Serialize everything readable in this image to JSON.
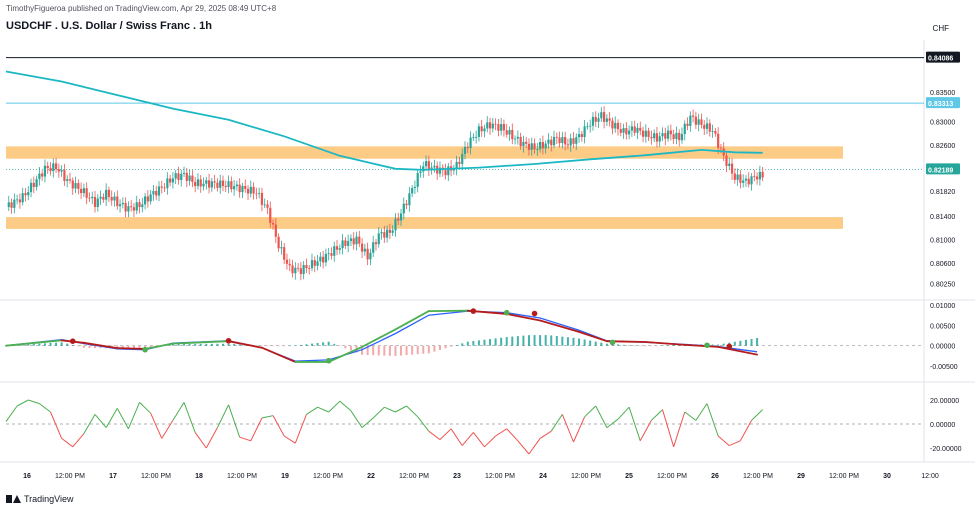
{
  "header": {
    "published": "TimothyFigueroa published on TradingView.com, Apr 29, 2025 08:49 UTC+8",
    "symbol": "USDCHF . U.S. Dollar / Swiss Franc . 1h",
    "currency": "CHF",
    "brand": "TradingView"
  },
  "colors": {
    "up": "#26a69a",
    "down": "#ef5350",
    "ma": "#1bb8c4",
    "zone": "#fcc77a",
    "macd_fast": "#2962ff",
    "macd_signal_up": "#4caf50",
    "macd_signal_down": "#b71c1c",
    "osc_up": "#4caf50",
    "osc_down": "#ef5350"
  },
  "chart_data": {
    "type": "candlestick",
    "symbol": "USDCHF",
    "timeframe": "1h",
    "price_ticks": [
      0.835,
      0.83,
      0.826,
      0.822,
      0.8182,
      0.814,
      0.81,
      0.806,
      0.8025
    ],
    "price_tick_labels": [
      "0.83500",
      "0.83000",
      "0.82600",
      "0.82189",
      "0.81820",
      "0.81400",
      "0.81000",
      "0.80600",
      "0.80250"
    ],
    "price_labels_shown": [
      "0.83500",
      "0.83000",
      "0.82600",
      "0.81820",
      "0.81400",
      "0.81000",
      "0.80600",
      "0.80250"
    ],
    "horizontal_lines": [
      {
        "value": 0.84086,
        "label": "0.84086",
        "color": "#131722"
      },
      {
        "value": 0.83313,
        "label": "0.83313",
        "color": "#5ec8e6"
      }
    ],
    "last_price": {
      "value": 0.82189,
      "label": "0.82189"
    },
    "zones": [
      {
        "from": 0.8237,
        "to": 0.8258,
        "color": "#fcc77a"
      },
      {
        "from": 0.8118,
        "to": 0.8138,
        "color": "#fcc77a"
      }
    ],
    "x_tick_labels": [
      "16",
      "12:00 PM",
      "17",
      "12:00 PM",
      "18",
      "12:00 PM",
      "19",
      "12:00 PM",
      "22",
      "12:00 PM",
      "23",
      "12:00 PM",
      "24",
      "12:00 PM",
      "25",
      "12:00 PM",
      "26",
      "12:00 PM",
      "29",
      "12:00 PM",
      "30",
      "12:00"
    ],
    "close_path": [
      [
        0,
        0.8155
      ],
      [
        6,
        0.8172
      ],
      [
        10,
        0.8195
      ],
      [
        14,
        0.822
      ],
      [
        18,
        0.8223
      ],
      [
        22,
        0.82
      ],
      [
        28,
        0.818
      ],
      [
        32,
        0.8162
      ],
      [
        36,
        0.8178
      ],
      [
        40,
        0.8162
      ],
      [
        44,
        0.8152
      ],
      [
        48,
        0.8158
      ],
      [
        52,
        0.8175
      ],
      [
        56,
        0.8188
      ],
      [
        60,
        0.8205
      ],
      [
        64,
        0.821
      ],
      [
        68,
        0.8195
      ],
      [
        74,
        0.8195
      ],
      [
        80,
        0.8192
      ],
      [
        86,
        0.8185
      ],
      [
        90,
        0.818
      ],
      [
        94,
        0.815
      ],
      [
        98,
        0.809
      ],
      [
        102,
        0.805
      ],
      [
        106,
        0.8048
      ],
      [
        110,
        0.8058
      ],
      [
        114,
        0.8068
      ],
      [
        118,
        0.8082
      ],
      [
        122,
        0.8095
      ],
      [
        126,
        0.81
      ],
      [
        130,
        0.807
      ],
      [
        134,
        0.8108
      ],
      [
        138,
        0.8112
      ],
      [
        142,
        0.8145
      ],
      [
        146,
        0.8185
      ],
      [
        150,
        0.8228
      ],
      [
        154,
        0.822
      ],
      [
        158,
        0.8215
      ],
      [
        162,
        0.8225
      ],
      [
        166,
        0.8262
      ],
      [
        170,
        0.8285
      ],
      [
        174,
        0.8295
      ],
      [
        178,
        0.829
      ],
      [
        182,
        0.8275
      ],
      [
        186,
        0.8262
      ],
      [
        190,
        0.8255
      ],
      [
        194,
        0.8262
      ],
      [
        198,
        0.8272
      ],
      [
        202,
        0.8262
      ],
      [
        206,
        0.8275
      ],
      [
        210,
        0.8298
      ],
      [
        214,
        0.831
      ],
      [
        218,
        0.8295
      ],
      [
        222,
        0.8282
      ],
      [
        226,
        0.8288
      ],
      [
        230,
        0.8278
      ],
      [
        234,
        0.8272
      ],
      [
        238,
        0.828
      ],
      [
        242,
        0.8272
      ],
      [
        246,
        0.8308
      ],
      [
        250,
        0.8295
      ],
      [
        254,
        0.8285
      ],
      [
        258,
        0.824
      ],
      [
        262,
        0.8205
      ],
      [
        266,
        0.8198
      ],
      [
        270,
        0.8208
      ]
    ],
    "ma_path": [
      [
        0,
        0.8385
      ],
      [
        20,
        0.8368
      ],
      [
        40,
        0.8345
      ],
      [
        60,
        0.8322
      ],
      [
        80,
        0.8303
      ],
      [
        100,
        0.8275
      ],
      [
        120,
        0.8242
      ],
      [
        140,
        0.822
      ],
      [
        150,
        0.8218
      ],
      [
        170,
        0.8222
      ],
      [
        190,
        0.8228
      ],
      [
        210,
        0.8236
      ],
      [
        230,
        0.8243
      ],
      [
        250,
        0.8252
      ],
      [
        262,
        0.8248
      ],
      [
        272,
        0.8247
      ]
    ],
    "macd": {
      "ticks": [
        0.01,
        0.005,
        0.0,
        -0.005
      ],
      "tick_labels": [
        "0.01000",
        "0.00500",
        "0.00000",
        "-0.00500"
      ],
      "fast": [
        [
          0,
          0.0
        ],
        [
          20,
          0.0015
        ],
        [
          28,
          0.0005
        ],
        [
          40,
          -0.0008
        ],
        [
          50,
          -0.001
        ],
        [
          60,
          0.0006
        ],
        [
          80,
          0.0012
        ],
        [
          92,
          -0.0005
        ],
        [
          104,
          -0.0038
        ],
        [
          116,
          -0.0035
        ],
        [
          128,
          -0.001
        ],
        [
          140,
          0.003
        ],
        [
          152,
          0.0075
        ],
        [
          166,
          0.0085
        ],
        [
          180,
          0.0081
        ],
        [
          192,
          0.0068
        ],
        [
          206,
          0.0038
        ],
        [
          216,
          0.0012
        ],
        [
          230,
          0.0008
        ],
        [
          244,
          0.0003
        ],
        [
          256,
          -0.0002
        ],
        [
          270,
          -0.0015
        ]
      ],
      "signal": [
        [
          0,
          0.0
        ],
        [
          20,
          0.0013
        ],
        [
          28,
          0.0007
        ],
        [
          40,
          -0.0006
        ],
        [
          50,
          -0.0008
        ],
        [
          60,
          0.0005
        ],
        [
          80,
          0.0011
        ],
        [
          92,
          -0.0005
        ],
        [
          104,
          -0.004
        ],
        [
          116,
          -0.004
        ],
        [
          128,
          -0.0003
        ],
        [
          140,
          0.004
        ],
        [
          152,
          0.0085
        ],
        [
          166,
          0.0086
        ],
        [
          180,
          0.0078
        ],
        [
          192,
          0.0062
        ],
        [
          206,
          0.0034
        ],
        [
          216,
          0.0011
        ],
        [
          230,
          0.0009
        ],
        [
          244,
          0.0002
        ],
        [
          256,
          -0.0003
        ],
        [
          270,
          -0.0022
        ]
      ],
      "cross_points": [
        [
          24,
          0.0011,
          "down"
        ],
        [
          50,
          -0.001,
          "up"
        ],
        [
          80,
          0.0012,
          "down"
        ],
        [
          116,
          -0.0037,
          "up"
        ],
        [
          168,
          0.0085,
          "down"
        ],
        [
          180,
          0.0081,
          "up"
        ],
        [
          190,
          0.0079,
          "down"
        ],
        [
          218,
          0.0008,
          "up"
        ],
        [
          252,
          0.0001,
          "up"
        ],
        [
          260,
          -0.0002,
          "down"
        ]
      ]
    },
    "oscillator": {
      "ticks": [
        20.0,
        0.0,
        -20.0
      ],
      "tick_labels": [
        "20.00000",
        "0.00000",
        "-20.00000"
      ],
      "values": [
        [
          0,
          2
        ],
        [
          4,
          15
        ],
        [
          8,
          20
        ],
        [
          12,
          17
        ],
        [
          16,
          10
        ],
        [
          20,
          -12
        ],
        [
          24,
          -19
        ],
        [
          28,
          -8
        ],
        [
          32,
          8
        ],
        [
          36,
          -3
        ],
        [
          40,
          13
        ],
        [
          44,
          -4
        ],
        [
          48,
          18
        ],
        [
          52,
          9
        ],
        [
          56,
          -12
        ],
        [
          60,
          3
        ],
        [
          64,
          18
        ],
        [
          68,
          -7
        ],
        [
          72,
          -20
        ],
        [
          76,
          -3
        ],
        [
          80,
          16
        ],
        [
          84,
          -11
        ],
        [
          88,
          -14
        ],
        [
          92,
          5
        ],
        [
          96,
          7
        ],
        [
          100,
          -10
        ],
        [
          104,
          -16
        ],
        [
          108,
          8
        ],
        [
          112,
          14
        ],
        [
          116,
          10
        ],
        [
          120,
          19
        ],
        [
          124,
          11
        ],
        [
          128,
          -3
        ],
        [
          132,
          5
        ],
        [
          136,
          14
        ],
        [
          140,
          10
        ],
        [
          144,
          15
        ],
        [
          148,
          6
        ],
        [
          152,
          -6
        ],
        [
          156,
          -13
        ],
        [
          160,
          -4
        ],
        [
          164,
          -18
        ],
        [
          168,
          -7
        ],
        [
          172,
          -19
        ],
        [
          176,
          -10
        ],
        [
          180,
          -4
        ],
        [
          184,
          -14
        ],
        [
          188,
          -25
        ],
        [
          192,
          -12
        ],
        [
          196,
          -6
        ],
        [
          200,
          8
        ],
        [
          204,
          -15
        ],
        [
          208,
          6
        ],
        [
          212,
          15
        ],
        [
          216,
          -3
        ],
        [
          220,
          4
        ],
        [
          224,
          14
        ],
        [
          228,
          -14
        ],
        [
          232,
          3
        ],
        [
          236,
          12
        ],
        [
          240,
          -19
        ],
        [
          244,
          10
        ],
        [
          248,
          3
        ],
        [
          252,
          17
        ],
        [
          256,
          -10
        ],
        [
          260,
          -18
        ],
        [
          264,
          -14
        ],
        [
          268,
          3
        ],
        [
          272,
          12
        ]
      ]
    }
  }
}
